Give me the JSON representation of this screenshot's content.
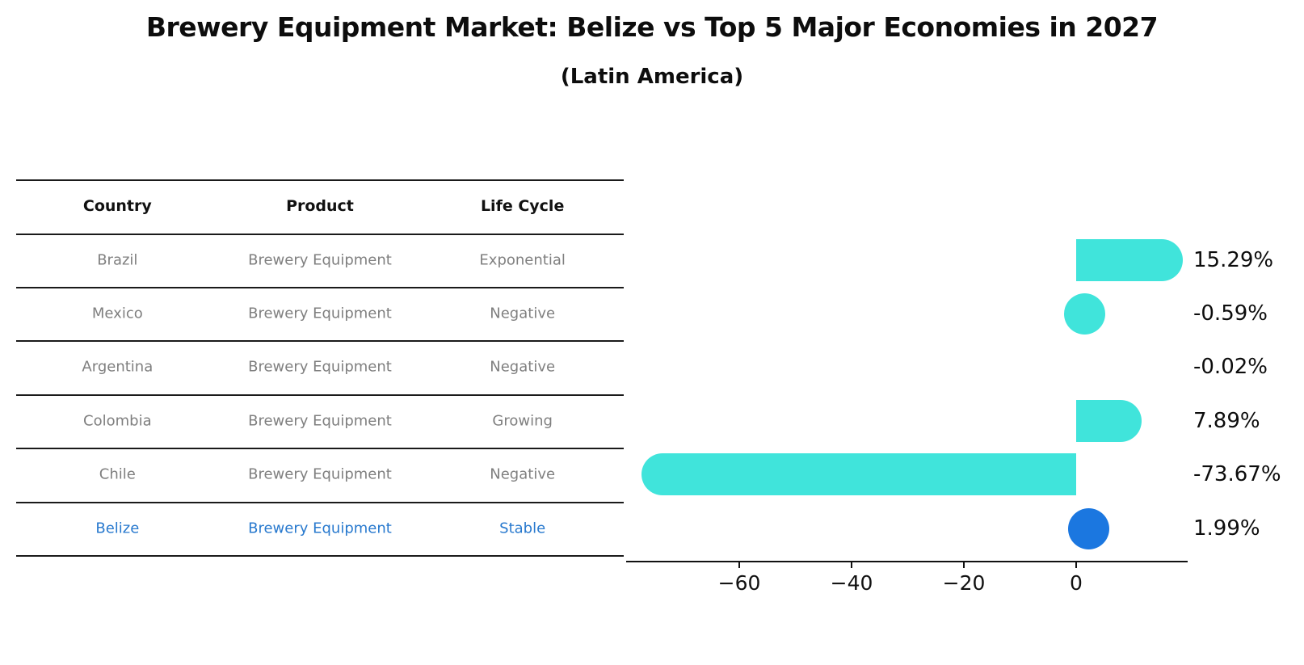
{
  "title": "Brewery Equipment Market: Belize vs Top 5 Major Economies in 2027",
  "subtitle": "(Latin America)",
  "table": {
    "headers": [
      "Country",
      "Product",
      "Life Cycle"
    ],
    "rows": [
      {
        "country": "Brazil",
        "product": "Brewery Equipment",
        "life_cycle": "Exponential",
        "highlight": false
      },
      {
        "country": "Mexico",
        "product": "Brewery Equipment",
        "life_cycle": "Negative",
        "highlight": false
      },
      {
        "country": "Argentina",
        "product": "Brewery Equipment",
        "life_cycle": "Negative",
        "highlight": false
      },
      {
        "country": "Colombia",
        "product": "Brewery Equipment",
        "life_cycle": "Growing",
        "highlight": false
      },
      {
        "country": "Chile",
        "product": "Brewery Equipment",
        "life_cycle": "Negative",
        "highlight": false
      },
      {
        "country": "Belize",
        "product": "Brewery Equipment",
        "life_cycle": "Stable",
        "highlight": true
      }
    ]
  },
  "chart_data": {
    "type": "bar",
    "orientation": "horizontal",
    "title": "Brewery Equipment Market: Belize vs Top 5 Major Economies in 2027 (Latin America)",
    "categories": [
      "Brazil",
      "Mexico",
      "Argentina",
      "Colombia",
      "Chile",
      "Belize"
    ],
    "values": [
      15.29,
      -0.59,
      -0.02,
      7.89,
      -73.67,
      1.99
    ],
    "value_labels": [
      "15.29%",
      "-0.59%",
      "-0.02%",
      "7.89%",
      "-73.67%",
      "1.99%"
    ],
    "unit": "%",
    "x_tick_labels": [
      "−60",
      "−40",
      "−20",
      "0"
    ],
    "x_tick_values": [
      -60,
      -40,
      -20,
      0
    ],
    "xlim": [
      -80,
      20
    ],
    "grid": false,
    "legend": "none",
    "bar_color": "#40e4db",
    "highlight_color": "#1b77e0",
    "highlight_index": 5,
    "highlight_text_color": "#2879ce"
  },
  "colors": {
    "background": "#ffffff",
    "table_line": "#1a1a1a",
    "table_text": "#7f7f7f",
    "label_text": "#0d0d0d"
  }
}
